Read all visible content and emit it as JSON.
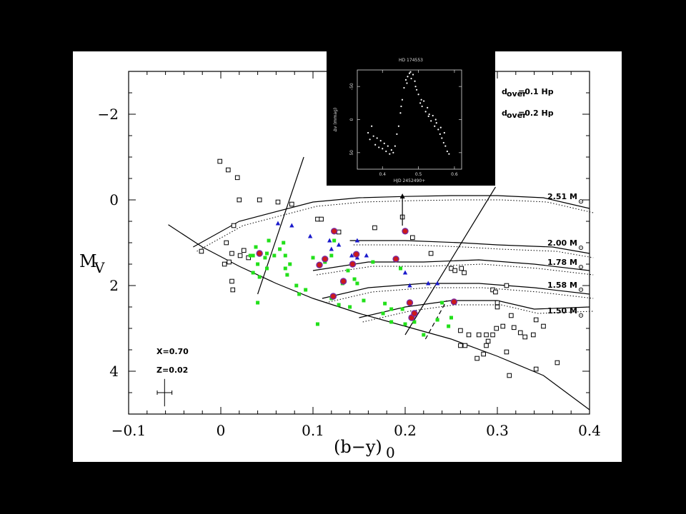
{
  "chart_data": {
    "type": "scatter",
    "xlabel": "(b−y)",
    "xlabel_sub": "0",
    "ylabel": "M",
    "ylabel_sub": "V",
    "xlim": [
      -0.1,
      0.4
    ],
    "ylim": [
      5,
      -3
    ],
    "x_ticks": [
      {
        "value": -0.1,
        "label": "−0.1"
      },
      {
        "value": 0,
        "label": "0"
      },
      {
        "value": 0.1,
        "label": "0.1"
      },
      {
        "value": 0.2,
        "label": "0.2"
      },
      {
        "value": 0.3,
        "label": "0.3"
      },
      {
        "value": 0.4,
        "label": "0.4"
      }
    ],
    "y_ticks": [
      {
        "value": -2,
        "label": "−2"
      },
      {
        "value": 0,
        "label": "0"
      },
      {
        "value": 2,
        "label": "2"
      },
      {
        "value": 4,
        "label": "4"
      }
    ],
    "composition": {
      "x_label": "X=0.70",
      "z_label": "Z=0.02"
    },
    "error_bar": {
      "x": -0.061,
      "y": 4.5,
      "xerr": 0.008,
      "yerr": 0.32
    },
    "zams": [
      [
        -0.057,
        0.58
      ],
      [
        -0.02,
        1.1
      ],
      [
        0.02,
        1.55
      ],
      [
        0.06,
        1.95
      ],
      [
        0.1,
        2.3
      ],
      [
        0.15,
        2.65
      ],
      [
        0.2,
        2.95
      ],
      [
        0.25,
        3.25
      ],
      [
        0.3,
        3.65
      ],
      [
        0.35,
        4.1
      ],
      [
        0.4,
        4.9
      ]
    ],
    "instability_strip": {
      "blue_edge": [
        [
          0.04,
          2.2
        ],
        [
          0.09,
          -1.0
        ]
      ],
      "red_edge": [
        [
          0.2,
          3.15
        ],
        [
          0.298,
          -0.3
        ]
      ]
    },
    "dashed_segment": [
      [
        0.222,
        3.25
      ],
      [
        0.245,
        2.35
      ]
    ],
    "tracks": [
      {
        "label": "2.51 M",
        "points": [
          [
            -0.03,
            1.1
          ],
          [
            0.02,
            0.5
          ],
          [
            0.1,
            0.05
          ],
          [
            0.15,
            -0.05
          ],
          [
            0.2,
            -0.08
          ],
          [
            0.25,
            -0.1
          ],
          [
            0.3,
            -0.1
          ],
          [
            0.35,
            -0.05
          ],
          [
            0.4,
            0.2
          ]
        ]
      },
      {
        "label": "2.00 M",
        "points": [
          [
            0.14,
            0.95
          ],
          [
            0.2,
            0.95
          ],
          [
            0.26,
            1.0
          ],
          [
            0.3,
            1.05
          ],
          [
            0.36,
            1.1
          ],
          [
            0.4,
            1.25
          ]
        ]
      },
      {
        "label": "1.78 M",
        "points": [
          [
            0.1,
            1.65
          ],
          [
            0.16,
            1.45
          ],
          [
            0.22,
            1.45
          ],
          [
            0.28,
            1.4
          ],
          [
            0.34,
            1.5
          ],
          [
            0.4,
            1.65
          ]
        ]
      },
      {
        "label": "1.58 M",
        "points": [
          [
            0.11,
            2.3
          ],
          [
            0.16,
            2.05
          ],
          [
            0.22,
            1.95
          ],
          [
            0.28,
            1.95
          ],
          [
            0.34,
            2.05
          ],
          [
            0.4,
            2.2
          ]
        ]
      },
      {
        "label": "1.50 M",
        "points": [
          [
            0.15,
            2.75
          ],
          [
            0.2,
            2.5
          ],
          [
            0.25,
            2.35
          ],
          [
            0.3,
            2.35
          ],
          [
            0.34,
            2.55
          ],
          [
            0.4,
            2.5
          ]
        ]
      }
    ],
    "mass_labels": [
      {
        "label": "2.51 M",
        "y": -0.08
      },
      {
        "label": "2.00 M",
        "y": 1.0
      },
      {
        "label": "1.78 M",
        "y": 1.45
      },
      {
        "label": "1.58 M",
        "y": 1.98
      },
      {
        "label": "1.50 M",
        "y": 2.58
      }
    ],
    "overshoot_legend": [
      {
        "label": "d",
        "sub": "over",
        "rest": "=0.1 Hp",
        "style": "solid"
      },
      {
        "label": "d",
        "sub": "over",
        "rest": "=0.2 Hp",
        "style": "dotted"
      }
    ],
    "open_squares": [
      [
        -0.001,
        -0.9
      ],
      [
        0.008,
        -0.7
      ],
      [
        0.018,
        -0.52
      ],
      [
        0.02,
        0
      ],
      [
        0.042,
        0
      ],
      [
        0.062,
        0.05
      ],
      [
        0.077,
        0.1
      ],
      [
        0.105,
        0.45
      ],
      [
        0.109,
        0.45
      ],
      [
        0.014,
        0.6
      ],
      [
        0.006,
        1.0
      ],
      [
        0.012,
        1.25
      ],
      [
        0.021,
        1.3
      ],
      [
        0.025,
        1.18
      ],
      [
        0.03,
        1.35
      ],
      [
        0.004,
        1.5
      ],
      [
        0.009,
        1.45
      ],
      [
        0.012,
        1.9
      ],
      [
        0.013,
        2.1
      ],
      [
        -0.021,
        1.2
      ],
      [
        0.128,
        0.75
      ],
      [
        0.167,
        0.65
      ],
      [
        0.197,
        0.4
      ],
      [
        0.208,
        0.88
      ],
      [
        0.228,
        1.25
      ],
      [
        0.25,
        1.6
      ],
      [
        0.254,
        1.65
      ],
      [
        0.261,
        1.6
      ],
      [
        0.264,
        1.7
      ],
      [
        0.295,
        2.1
      ],
      [
        0.298,
        2.15
      ],
      [
        0.31,
        2.0
      ],
      [
        0.3,
        2.4
      ],
      [
        0.3,
        2.5
      ],
      [
        0.315,
        2.7
      ],
      [
        0.26,
        3.05
      ],
      [
        0.269,
        3.15
      ],
      [
        0.288,
        3.15
      ],
      [
        0.29,
        3.3
      ],
      [
        0.299,
        3.0
      ],
      [
        0.295,
        3.15
      ],
      [
        0.306,
        2.95
      ],
      [
        0.318,
        2.98
      ],
      [
        0.325,
        3.1
      ],
      [
        0.26,
        3.4
      ],
      [
        0.28,
        3.15
      ],
      [
        0.288,
        3.4
      ],
      [
        0.31,
        3.55
      ],
      [
        0.285,
        3.6
      ],
      [
        0.278,
        3.7
      ],
      [
        0.313,
        4.1
      ],
      [
        0.342,
        3.95
      ],
      [
        0.33,
        3.2
      ],
      [
        0.342,
        2.8
      ],
      [
        0.339,
        3.15
      ],
      [
        0.365,
        3.8
      ],
      [
        0.35,
        2.95
      ],
      [
        0.265,
        3.4
      ]
    ],
    "green_squares": [
      [
        0.032,
        1.3
      ],
      [
        0.038,
        1.1
      ],
      [
        0.035,
        1.3
      ],
      [
        0.04,
        1.5
      ],
      [
        0.035,
        1.7
      ],
      [
        0.042,
        1.8
      ],
      [
        0.048,
        1.35
      ],
      [
        0.05,
        1.25
      ],
      [
        0.052,
        0.95
      ],
      [
        0.058,
        1.3
      ],
      [
        0.064,
        1.15
      ],
      [
        0.068,
        1.0
      ],
      [
        0.07,
        1.3
      ],
      [
        0.07,
        1.6
      ],
      [
        0.072,
        1.75
      ],
      [
        0.075,
        1.5
      ],
      [
        0.082,
        2.0
      ],
      [
        0.085,
        2.2
      ],
      [
        0.092,
        2.1
      ],
      [
        0.04,
        2.4
      ],
      [
        0.1,
        1.35
      ],
      [
        0.113,
        1.45
      ],
      [
        0.12,
        1.3
      ],
      [
        0.123,
        0.95
      ],
      [
        0.138,
        1.65
      ],
      [
        0.145,
        1.85
      ],
      [
        0.148,
        1.95
      ],
      [
        0.12,
        2.3
      ],
      [
        0.128,
        2.45
      ],
      [
        0.132,
        1.95
      ],
      [
        0.14,
        2.5
      ],
      [
        0.155,
        2.35
      ],
      [
        0.165,
        1.45
      ],
      [
        0.178,
        2.42
      ],
      [
        0.185,
        2.55
      ],
      [
        0.176,
        2.65
      ],
      [
        0.195,
        1.6
      ],
      [
        0.197,
        2.55
      ],
      [
        0.2,
        2.9
      ],
      [
        0.21,
        2.85
      ],
      [
        0.185,
        2.85
      ],
      [
        0.22,
        3.15
      ],
      [
        0.235,
        2.8
      ],
      [
        0.24,
        2.4
      ],
      [
        0.247,
        2.95
      ],
      [
        0.25,
        2.75
      ],
      [
        0.105,
        2.9
      ],
      [
        0.05,
        1.6
      ]
    ],
    "blue_triangles": [
      [
        0.062,
        0.55
      ],
      [
        0.077,
        0.6
      ],
      [
        0.097,
        0.85
      ],
      [
        0.118,
        0.95
      ],
      [
        0.128,
        1.05
      ],
      [
        0.12,
        1.15
      ],
      [
        0.148,
        0.95
      ],
      [
        0.158,
        1.3
      ],
      [
        0.142,
        1.3
      ],
      [
        0.148,
        1.35
      ],
      [
        0.205,
        2.0
      ],
      [
        0.225,
        1.95
      ],
      [
        0.235,
        1.95
      ],
      [
        0.2,
        1.7
      ]
    ],
    "red_circles": [
      [
        0.042,
        1.25
      ],
      [
        0.107,
        1.52
      ],
      [
        0.113,
        1.38
      ],
      [
        0.123,
        0.73
      ],
      [
        0.133,
        1.9
      ],
      [
        0.143,
        1.5
      ],
      [
        0.147,
        1.27
      ],
      [
        0.19,
        1.38
      ],
      [
        0.2,
        0.73
      ],
      [
        0.205,
        2.4
      ],
      [
        0.207,
        2.75
      ],
      [
        0.21,
        2.65
      ],
      [
        0.122,
        2.25
      ],
      [
        0.253,
        2.38
      ]
    ],
    "arrow": {
      "x": 0.197,
      "y_from": 0.6,
      "y_to": -0.15
    },
    "inset": {
      "title": "HD 174553",
      "xlabel": "HJD 2452490+",
      "ylabel": "Δv (mmag)",
      "xlim": [
        0.33,
        0.62
      ],
      "ylim": [
        75,
        -75
      ],
      "x_ticks": [
        {
          "value": 0.4,
          "label": "0.4"
        },
        {
          "value": 0.5,
          "label": "0.5"
        },
        {
          "value": 0.6,
          "label": "0.6"
        }
      ],
      "y_ticks": [
        {
          "value": -50,
          "label": "-50"
        },
        {
          "value": 0,
          "label": "0"
        },
        {
          "value": 50,
          "label": "50"
        }
      ],
      "points": [
        [
          0.36,
          20
        ],
        [
          0.365,
          30
        ],
        [
          0.37,
          10
        ],
        [
          0.375,
          25
        ],
        [
          0.38,
          38
        ],
        [
          0.385,
          28
        ],
        [
          0.39,
          42
        ],
        [
          0.395,
          32
        ],
        [
          0.4,
          44
        ],
        [
          0.405,
          36
        ],
        [
          0.41,
          48
        ],
        [
          0.415,
          40
        ],
        [
          0.42,
          52
        ],
        [
          0.425,
          46
        ],
        [
          0.43,
          50
        ],
        [
          0.435,
          40
        ],
        [
          0.44,
          22
        ],
        [
          0.445,
          10
        ],
        [
          0.45,
          -10
        ],
        [
          0.455,
          -30
        ],
        [
          0.46,
          -48
        ],
        [
          0.465,
          -60
        ],
        [
          0.47,
          -65
        ],
        [
          0.475,
          -70
        ],
        [
          0.48,
          -62
        ],
        [
          0.485,
          -68
        ],
        [
          0.49,
          -58
        ],
        [
          0.495,
          -45
        ],
        [
          0.5,
          -38
        ],
        [
          0.505,
          -25
        ],
        [
          0.51,
          -20
        ],
        [
          0.515,
          -28
        ],
        [
          0.52,
          -12
        ],
        [
          0.525,
          -18
        ],
        [
          0.53,
          -8
        ],
        [
          0.535,
          2
        ],
        [
          0.54,
          -6
        ],
        [
          0.545,
          10
        ],
        [
          0.55,
          5
        ],
        [
          0.555,
          15
        ],
        [
          0.56,
          22
        ],
        [
          0.565,
          28
        ],
        [
          0.57,
          35
        ],
        [
          0.575,
          40
        ],
        [
          0.58,
          48
        ],
        [
          0.585,
          52
        ],
        [
          0.452,
          -20
        ],
        [
          0.468,
          -55
        ],
        [
          0.478,
          -72
        ],
        [
          0.492,
          -50
        ],
        [
          0.508,
          -30
        ],
        [
          0.528,
          -5
        ],
        [
          0.548,
          0
        ],
        [
          0.562,
          12
        ],
        [
          0.572,
          20
        ]
      ]
    }
  }
}
